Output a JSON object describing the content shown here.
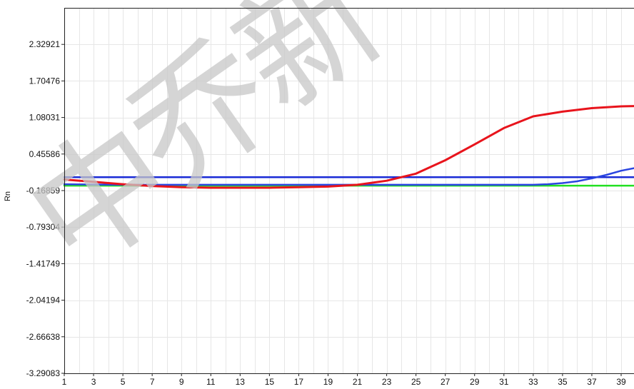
{
  "chart_data": {
    "type": "line",
    "ylabel": "Rn",
    "xlabel": "",
    "title": "",
    "xlim": [
      1,
      41
    ],
    "ylim": [
      -3.29083,
      2.95366
    ],
    "x_ticks": [
      "1",
      "3",
      "5",
      "7",
      "9",
      "11",
      "13",
      "15",
      "17",
      "19",
      "21",
      "23",
      "25",
      "27",
      "29",
      "31",
      "33",
      "35",
      "37",
      "39"
    ],
    "y_ticks": [
      "2.32921",
      "1.70476",
      "1.08031",
      "0.45586",
      "-0.16859",
      "-0.79304",
      "-1.41749",
      "-2.04194",
      "-2.66638",
      "-3.29083"
    ],
    "grid": true,
    "series": [
      {
        "color": "#e8141c",
        "x": [
          1,
          3,
          5,
          7,
          9,
          11,
          13,
          15,
          17,
          19,
          21,
          23,
          25,
          27,
          29,
          31,
          33,
          35,
          37,
          39,
          41
        ],
        "y": [
          0.02,
          -0.02,
          -0.06,
          -0.09,
          -0.11,
          -0.12,
          -0.12,
          -0.12,
          -0.11,
          -0.1,
          -0.07,
          0.0,
          0.12,
          0.35,
          0.62,
          0.9,
          1.1,
          1.18,
          1.24,
          1.27,
          1.28
        ]
      },
      {
        "color": "#1a2bd6",
        "x": [
          1,
          5,
          9,
          13,
          17,
          21,
          25,
          29,
          33,
          35,
          37,
          39,
          41
        ],
        "y": [
          0.06,
          0.06,
          0.06,
          0.06,
          0.06,
          0.06,
          0.06,
          0.06,
          0.06,
          0.06,
          0.06,
          0.06,
          0.06
        ]
      },
      {
        "color": "#2a45e0",
        "x": [
          1,
          5,
          9,
          13,
          17,
          21,
          25,
          29,
          31,
          33,
          34,
          35,
          36,
          37,
          38,
          39,
          40,
          41
        ],
        "y": [
          -0.06,
          -0.07,
          -0.07,
          -0.07,
          -0.07,
          -0.07,
          -0.07,
          -0.07,
          -0.07,
          -0.07,
          -0.06,
          -0.04,
          -0.01,
          0.04,
          0.1,
          0.17,
          0.22,
          0.26
        ]
      },
      {
        "color": "#22e022",
        "x": [
          1,
          5,
          9,
          13,
          17,
          21,
          25,
          29,
          33,
          37,
          41
        ],
        "y": [
          -0.085,
          -0.085,
          -0.085,
          -0.085,
          -0.085,
          -0.085,
          -0.085,
          -0.085,
          -0.085,
          -0.085,
          -0.085
        ]
      }
    ]
  },
  "watermark": "中乔新"
}
